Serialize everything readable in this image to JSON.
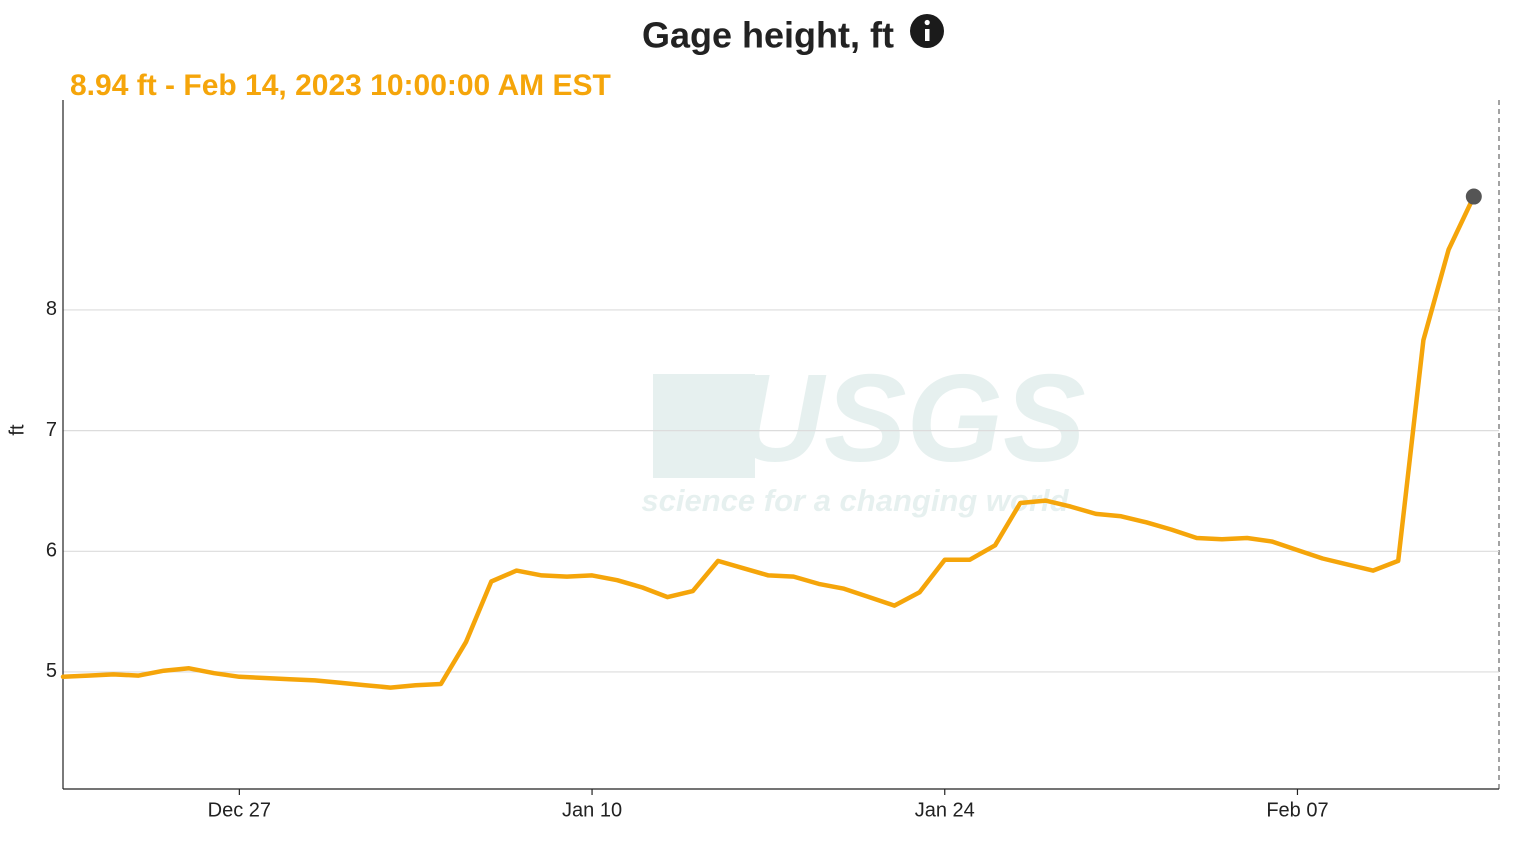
{
  "chart_data": {
    "type": "line",
    "title": "Gage height, ft",
    "subtitle": "8.94 ft - Feb 14, 2023 10:00:00 AM EST",
    "y_label": "ft",
    "watermark": {
      "logo": "USGS",
      "tagline": "science for a changing world"
    },
    "categories": [
      null,
      null,
      null,
      null,
      null,
      null,
      null,
      "Dec 27",
      null,
      null,
      null,
      null,
      null,
      null,
      null,
      null,
      null,
      null,
      null,
      null,
      null,
      "Jan 10",
      null,
      null,
      null,
      null,
      null,
      null,
      null,
      null,
      null,
      null,
      null,
      null,
      null,
      "Jan 24",
      null,
      null,
      null,
      null,
      null,
      null,
      null,
      null,
      null,
      null,
      null,
      null,
      null,
      "Feb 07",
      null,
      null,
      null,
      null,
      null,
      null,
      null
    ],
    "series": [
      {
        "name": "Gage height",
        "color": "#f5a50a",
        "values": [
          4.96,
          4.97,
          4.98,
          4.97,
          5.01,
          5.03,
          4.99,
          4.96,
          4.95,
          4.94,
          4.93,
          4.91,
          4.89,
          4.87,
          4.89,
          4.9,
          5.25,
          5.75,
          5.84,
          5.8,
          5.79,
          5.8,
          5.76,
          5.7,
          5.62,
          5.67,
          5.92,
          5.86,
          5.8,
          5.79,
          5.73,
          5.69,
          5.62,
          5.55,
          5.66,
          5.93,
          5.93,
          6.05,
          6.4,
          6.42,
          6.37,
          6.31,
          6.29,
          6.24,
          6.18,
          6.11,
          6.1,
          6.11,
          6.08,
          6.01,
          5.94,
          5.89,
          5.84,
          5.92,
          7.75,
          8.5,
          8.94
        ]
      }
    ],
    "ylim": [
      4.03,
      9.74
    ],
    "yticks": [
      5,
      6,
      7,
      8
    ],
    "grid": true
  }
}
